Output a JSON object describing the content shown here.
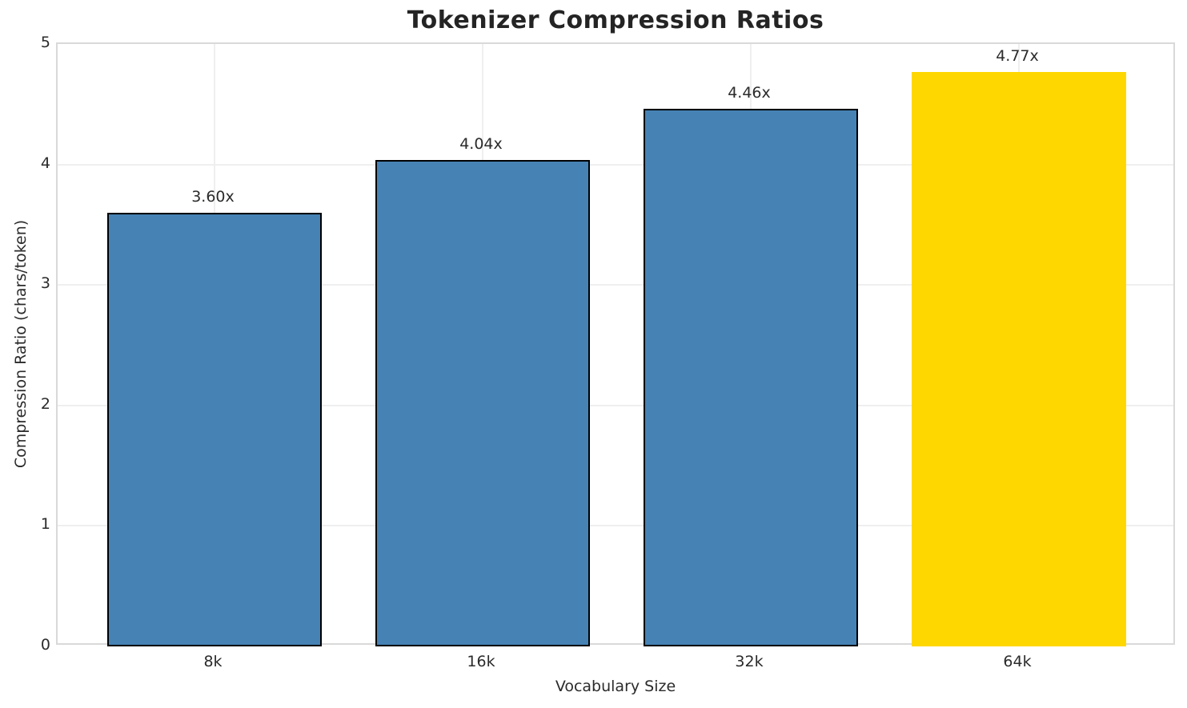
{
  "chart_data": {
    "type": "bar",
    "title": "Tokenizer Compression Ratios",
    "xlabel": "Vocabulary Size",
    "ylabel": "Compression Ratio (chars/token)",
    "categories": [
      "8k",
      "16k",
      "32k",
      "64k"
    ],
    "values": [
      3.6,
      4.04,
      4.46,
      4.77
    ],
    "bar_labels": [
      "3.60x",
      "4.04x",
      "4.46x",
      "4.77x"
    ],
    "bar_colors": [
      "#4682B4",
      "#4682B4",
      "#4682B4",
      "#FFD700"
    ],
    "bar_edge_colors": [
      "#000000",
      "#000000",
      "#000000",
      "none"
    ],
    "highlight_index": 3,
    "ylim": [
      0,
      5
    ],
    "yticks": [
      0,
      1,
      2,
      3,
      4,
      5
    ],
    "grid": true,
    "legend": "none"
  }
}
